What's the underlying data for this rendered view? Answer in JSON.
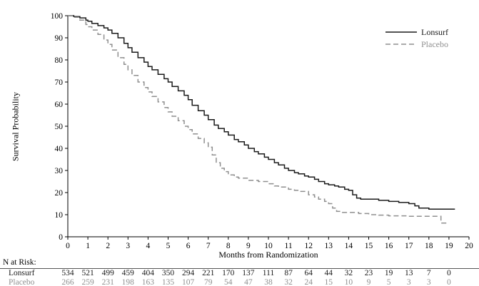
{
  "chart_data": {
    "type": "line",
    "title": "",
    "xlabel": "Months from Randomization",
    "ylabel": "Survival Probability",
    "xlim": [
      0,
      20
    ],
    "ylim": [
      0,
      100
    ],
    "xticks": [
      0,
      1,
      2,
      3,
      4,
      5,
      6,
      7,
      8,
      9,
      10,
      11,
      12,
      13,
      14,
      15,
      16,
      17,
      18,
      19,
      20
    ],
    "yticks": [
      0,
      10,
      20,
      30,
      40,
      50,
      60,
      70,
      80,
      90,
      100
    ],
    "grid": false,
    "legend_position": "top-right",
    "series": [
      {
        "name": "Lonsurf",
        "style": "solid",
        "color": "#1a1a1a",
        "x": [
          0,
          0.3,
          0.6,
          0.9,
          1,
          1.2,
          1.5,
          1.8,
          2,
          2.2,
          2.5,
          2.8,
          3,
          3.2,
          3.5,
          3.8,
          4,
          4.2,
          4.5,
          4.8,
          5,
          5.2,
          5.5,
          5.8,
          6,
          6.2,
          6.5,
          6.8,
          7,
          7.3,
          7.5,
          7.8,
          8,
          8.3,
          8.5,
          8.8,
          9,
          9.3,
          9.5,
          9.8,
          10,
          10.3,
          10.5,
          10.8,
          11,
          11.3,
          11.5,
          11.8,
          12,
          12.3,
          12.5,
          12.8,
          13,
          13.3,
          13.5,
          13.8,
          14,
          14.2,
          14.4,
          14.6,
          15,
          15.5,
          16,
          16.5,
          17,
          17.3,
          17.5,
          18,
          19.3
        ],
        "y": [
          100,
          99.6,
          99,
          98,
          97.5,
          96.5,
          95.5,
          94.5,
          93.5,
          92,
          90,
          87.5,
          85.5,
          83.5,
          81,
          79,
          77,
          75.5,
          73.5,
          71.5,
          70,
          68,
          66,
          64,
          62,
          59.5,
          57,
          55,
          53,
          50.5,
          49,
          47.5,
          46,
          44,
          43,
          41.5,
          40,
          38.5,
          37.5,
          36,
          35,
          33.5,
          32.5,
          31,
          30,
          29,
          28.5,
          27.5,
          27,
          26,
          25,
          24,
          23.5,
          23,
          22.5,
          21.5,
          21,
          19,
          17.5,
          17,
          17,
          16.5,
          16,
          15.5,
          15,
          14,
          13,
          12.5,
          12.5
        ]
      },
      {
        "name": "Placebo",
        "style": "dashed",
        "color": "#8f8f8f",
        "x": [
          0,
          0.3,
          0.6,
          0.9,
          1,
          1.2,
          1.5,
          1.8,
          2,
          2.2,
          2.5,
          2.8,
          3,
          3.2,
          3.5,
          3.8,
          4,
          4.2,
          4.5,
          4.8,
          5,
          5.2,
          5.5,
          5.8,
          6,
          6.2,
          6.5,
          6.8,
          7,
          7.2,
          7.4,
          7.6,
          7.8,
          8,
          8.3,
          8.5,
          9,
          9.5,
          10,
          10.3,
          10.5,
          11,
          11.3,
          11.5,
          12,
          12.3,
          12.5,
          12.8,
          13,
          13.2,
          13.4,
          13.6,
          14,
          14.5,
          15,
          15.5,
          16,
          17,
          18,
          18.6,
          19
        ],
        "y": [
          100,
          99.3,
          98,
          96,
          95,
          93.5,
          91.5,
          89,
          87,
          84.5,
          81,
          78,
          75.5,
          73,
          70,
          67.5,
          65.5,
          63.5,
          61,
          58.5,
          56.5,
          54.5,
          52.5,
          50,
          48.5,
          46.5,
          44.5,
          42.5,
          40.5,
          37,
          33.5,
          31,
          29.5,
          28,
          27,
          26.5,
          25.5,
          25,
          24,
          23,
          22.5,
          21.5,
          21,
          20.5,
          19,
          18,
          17,
          16,
          15,
          13,
          11.5,
          11,
          11,
          10.5,
          10,
          9.8,
          9.5,
          9.3,
          9.3,
          6.2,
          6.2
        ]
      }
    ]
  },
  "risk_table": {
    "label": "N at Risk:",
    "months": [
      0,
      1,
      2,
      3,
      4,
      5,
      6,
      7,
      8,
      9,
      10,
      11,
      12,
      13,
      14,
      15,
      16,
      17,
      18,
      19
    ],
    "rows": [
      {
        "name": "Lonsurf",
        "color": "#1a1a1a",
        "values": [
          "534",
          "521",
          "499",
          "459",
          "404",
          "350",
          "294",
          "221",
          "170",
          "137",
          "111",
          "87",
          "64",
          "44",
          "32",
          "23",
          "19",
          "13",
          "7",
          "0"
        ]
      },
      {
        "name": "Placebo",
        "color": "#8f8f8f",
        "values": [
          "266",
          "259",
          "231",
          "198",
          "163",
          "135",
          "107",
          "79",
          "54",
          "47",
          "38",
          "32",
          "24",
          "15",
          "10",
          "9",
          "5",
          "3",
          "3",
          "0"
        ]
      }
    ]
  }
}
